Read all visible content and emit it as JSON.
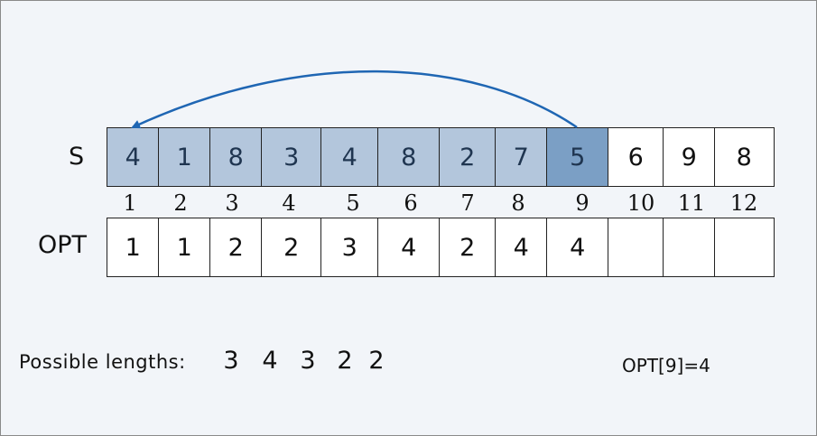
{
  "rows": {
    "s_label": "S",
    "opt_label": "OPT"
  },
  "s_values": [
    "4",
    "1",
    "8",
    "3",
    "4",
    "8",
    "2",
    "7",
    "5",
    "6",
    "9",
    "8"
  ],
  "opt_values": [
    "1",
    "1",
    "2",
    "2",
    "3",
    "4",
    "2",
    "4",
    "4",
    "",
    "",
    ""
  ],
  "indices": [
    "1",
    "2",
    "3",
    "4",
    "5",
    "6",
    "7",
    "8",
    "9",
    "10",
    "11",
    "12"
  ],
  "highlight": {
    "range_end_index": 8,
    "current_index": 9
  },
  "colors": {
    "highlight": "#b3c6dc",
    "current": "#7b9fc5",
    "arrow": "#1f66b3",
    "background": "#f2f5f9"
  },
  "footer": {
    "label": "Possible lengths:",
    "values": [
      "3",
      "4",
      "3",
      "2",
      "2"
    ],
    "result": "OPT[9]=4"
  }
}
